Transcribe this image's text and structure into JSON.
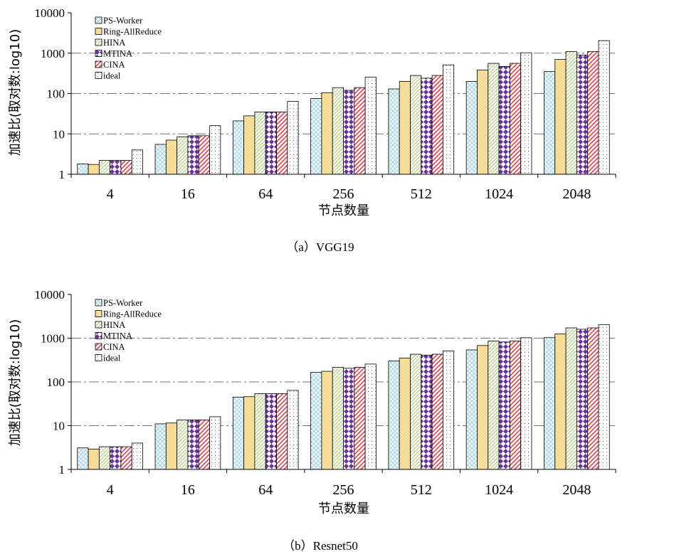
{
  "legend_labels": [
    "PS-Worker",
    "Ring-AllReduce",
    "HINA",
    "MTINA",
    "CINA",
    "ideal"
  ],
  "chart_data": [
    {
      "type": "bar",
      "caption": "（a）VGG19",
      "xlabel": "节点数量",
      "ylabel": "加速比(取对数:log10)",
      "yscale": "log",
      "ylim": [
        1,
        10000
      ],
      "yticks": [
        "1",
        "10",
        "100",
        "1000",
        "10000"
      ],
      "grid": "dash-dot at 10, 100, 1000",
      "legend_position": "top-left",
      "categories": [
        "4",
        "16",
        "64",
        "256",
        "512",
        "1024",
        "2048"
      ],
      "series": [
        {
          "name": "PS-Worker",
          "values": [
            1.8,
            5.5,
            21,
            75,
            130,
            200,
            350
          ]
        },
        {
          "name": "Ring-AllReduce",
          "values": [
            1.75,
            7,
            28,
            105,
            200,
            380,
            700
          ]
        },
        {
          "name": "HINA",
          "values": [
            2.2,
            8.5,
            35,
            140,
            280,
            560,
            1100
          ]
        },
        {
          "name": "MTINA",
          "values": [
            2.2,
            9,
            35,
            120,
            240,
            470,
            900
          ]
        },
        {
          "name": "CINA",
          "values": [
            2.2,
            9,
            35,
            140,
            280,
            560,
            1100
          ]
        },
        {
          "name": "ideal",
          "values": [
            4,
            16,
            64,
            256,
            512,
            1024,
            2048
          ]
        }
      ]
    },
    {
      "type": "bar",
      "caption": "（b）Resnet50",
      "xlabel": "节点数量",
      "ylabel": "加速比(取对数:log10)",
      "yscale": "log",
      "ylim": [
        1,
        10000
      ],
      "yticks": [
        "1",
        "10",
        "100",
        "1000",
        "10000"
      ],
      "grid": "dash-dot at 10, 100, 1000",
      "legend_position": "top-left",
      "categories": [
        "4",
        "16",
        "64",
        "256",
        "512",
        "1024",
        "2048"
      ],
      "series": [
        {
          "name": "PS-Worker",
          "values": [
            3.1,
            11,
            45,
            165,
            300,
            540,
            1030
          ]
        },
        {
          "name": "Ring-AllReduce",
          "values": [
            2.9,
            11.5,
            46,
            175,
            350,
            680,
            1250
          ]
        },
        {
          "name": "HINA",
          "values": [
            3.3,
            13.5,
            54,
            215,
            430,
            860,
            1720
          ]
        },
        {
          "name": "MTINA",
          "values": [
            3.3,
            13.5,
            54,
            205,
            410,
            820,
            1600
          ]
        },
        {
          "name": "CINA",
          "values": [
            3.3,
            13.5,
            54,
            215,
            430,
            860,
            1720
          ]
        },
        {
          "name": "ideal",
          "values": [
            4,
            16,
            64,
            256,
            512,
            1024,
            2048
          ]
        }
      ]
    }
  ]
}
